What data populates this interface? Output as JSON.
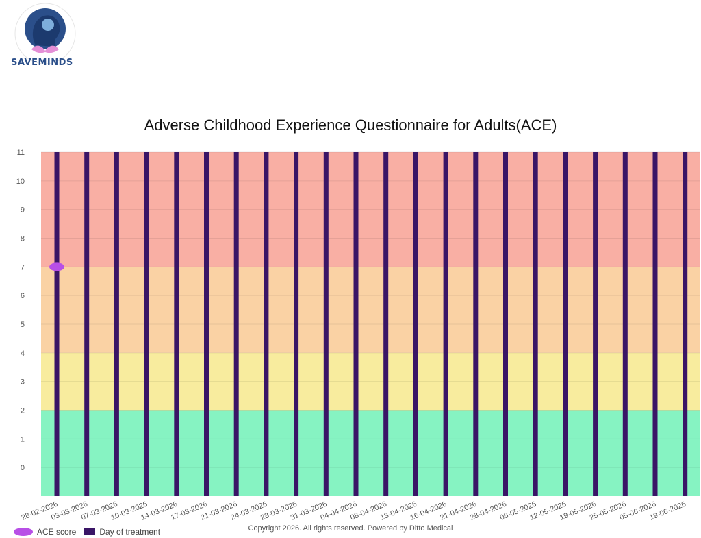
{
  "logo": {
    "text": "SAVEMINDS",
    "icon": "head-with-brain-and-lotus-logo"
  },
  "footer": {
    "copyright": "Copyright  2026. All rights reserved. Powered by Ditto Medical"
  },
  "colors": {
    "band_severe": "#f9afa4",
    "band_high": "#fad2a4",
    "band_moderate": "#f8ec9e",
    "band_low": "#86f3c2",
    "ace_score": "#b84fe6",
    "day_of_treatment": "#3a1566"
  },
  "chart_data": {
    "type": "bar",
    "title": "Adverse Childhood Experience Questionnaire for Adults(ACE)",
    "xlabel": "",
    "ylabel": "",
    "ylim": [
      -1,
      11
    ],
    "yticks": [
      0,
      1,
      2,
      3,
      4,
      5,
      6,
      7,
      8,
      9,
      10,
      11
    ],
    "grid": true,
    "legend_position": "bottom-left",
    "categories": [
      "28-02-2026",
      "03-03-2026",
      "07-03-2026",
      "10-03-2026",
      "14-03-2026",
      "17-03-2026",
      "21-03-2026",
      "24-03-2026",
      "28-03-2026",
      "31-03-2026",
      "04-04-2026",
      "08-04-2026",
      "13-04-2026",
      "16-04-2026",
      "21-04-2026",
      "28-04-2026",
      "06-05-2026",
      "12-05-2026",
      "19-05-2026",
      "25-05-2026",
      "05-06-2026",
      "19-06-2026"
    ],
    "bands": [
      {
        "from": -1,
        "to": 2,
        "color": "#86f3c2"
      },
      {
        "from": 2,
        "to": 4,
        "color": "#f8ec9e"
      },
      {
        "from": 4,
        "to": 7,
        "color": "#fad2a4"
      },
      {
        "from": 7,
        "to": 11,
        "color": "#f9afa4"
      }
    ],
    "series": [
      {
        "name": "ACE score",
        "type": "scatter",
        "points": [
          {
            "x": "28-02-2026",
            "y": 7
          }
        ]
      },
      {
        "name": "Day of treatment",
        "type": "bar",
        "values": [
          11,
          11,
          11,
          11,
          11,
          11,
          11,
          11,
          11,
          11,
          11,
          11,
          11,
          11,
          11,
          11,
          11,
          11,
          11,
          11,
          11,
          11
        ]
      }
    ]
  }
}
